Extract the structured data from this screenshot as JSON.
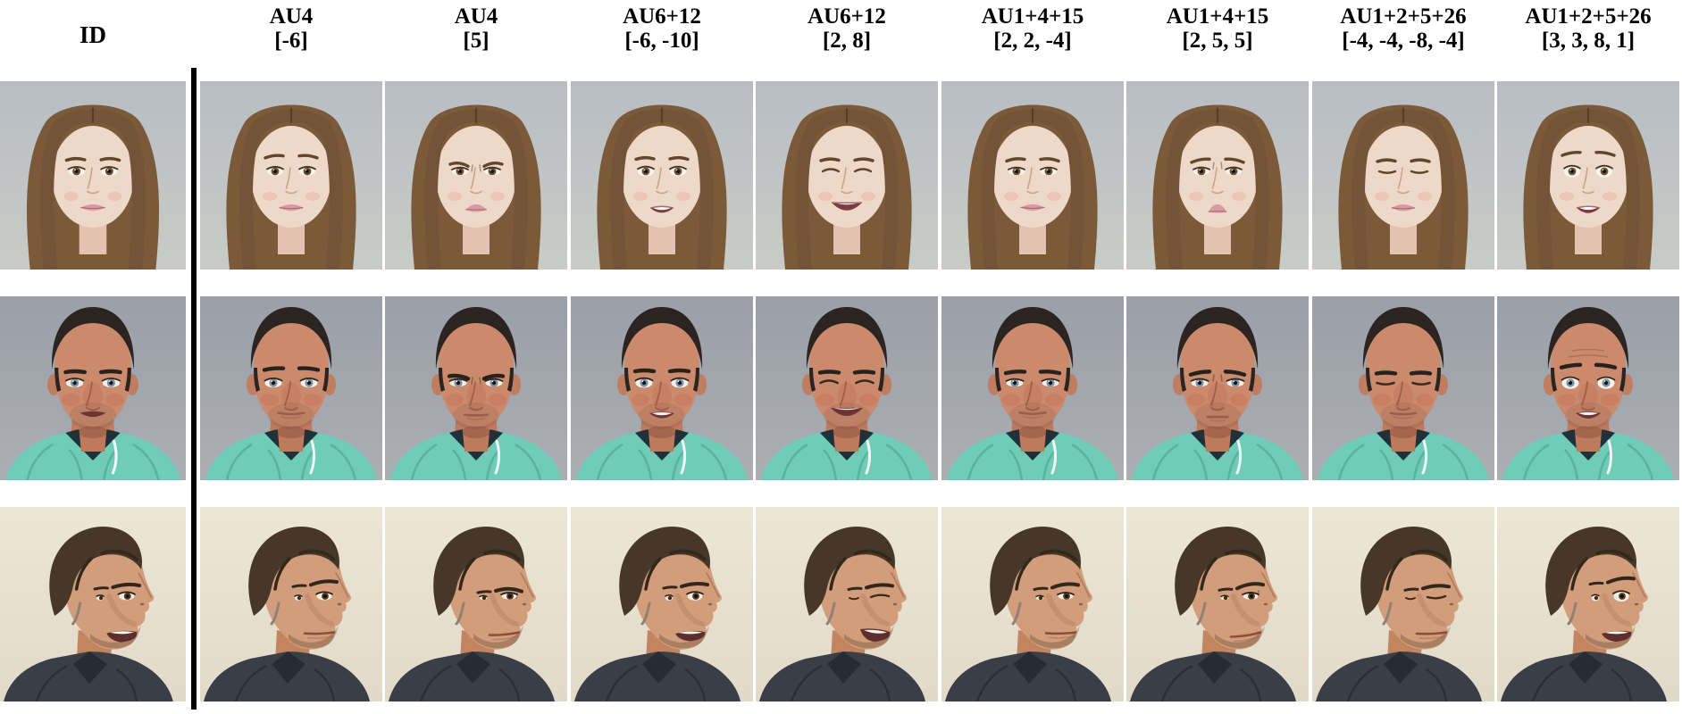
{
  "header": {
    "id_label": "ID",
    "columns": [
      {
        "au": "AU4",
        "intensity": "[-6]"
      },
      {
        "au": "AU4",
        "intensity": "[5]"
      },
      {
        "au": "AU6+12",
        "intensity": "[-6, -10]"
      },
      {
        "au": "AU6+12",
        "intensity": "[2, 8]"
      },
      {
        "au": "AU1+4+15",
        "intensity": "[2, 2, -4]"
      },
      {
        "au": "AU1+4+15",
        "intensity": "[2, 5, 5]"
      },
      {
        "au": "AU1+2+5+26",
        "intensity": "[-4, -4, -8, -4]"
      },
      {
        "au": "AU1+2+5+26",
        "intensity": "[3, 3, 8, 1]"
      }
    ]
  },
  "rows": [
    {
      "subject": "woman-long-brown-hair",
      "view": "frontal",
      "id_expression": {
        "open": 0.0
      }
    },
    {
      "subject": "man-buzz-cut-teal-hoodie",
      "view": "frontal",
      "id_expression": {
        "open": 0.3
      }
    },
    {
      "subject": "man-three-quarter-dark-shirt",
      "view": "three-quarter",
      "id_expression": {
        "open": 0.55,
        "teeth": true
      }
    }
  ],
  "expressions": {
    "neutral": {
      "browY": 0,
      "innerUp": 0,
      "knit": 0,
      "eye": 1,
      "smile": 0.08,
      "open": 0,
      "teeth": false
    },
    "columns": [
      {
        "label": "brows relaxed / slightly raised",
        "params": {
          "browY": -3,
          "innerUp": 0.6,
          "knit": 0,
          "eye": 1.02,
          "smile": 0.06,
          "open": 0.06,
          "teeth": false
        }
      },
      {
        "label": "brows lowered, frown",
        "params": {
          "browY": 4.5,
          "innerUp": 0,
          "knit": 1,
          "eye": 0.78,
          "smile": -0.3,
          "open": 0.12,
          "teeth": false
        }
      },
      {
        "label": "mouth opened, neutral corners",
        "params": {
          "browY": -1,
          "innerUp": 0,
          "knit": 0,
          "eye": 1.1,
          "smile": 0.0,
          "open": 0.45,
          "teeth": true
        }
      },
      {
        "label": "big smile, squinted eyes",
        "params": {
          "browY": 0.5,
          "innerUp": 0,
          "knit": 0,
          "eye": 0.1,
          "smile": 1,
          "open": 0.5,
          "teeth": true
        }
      },
      {
        "label": "mild inner-brow raise",
        "params": {
          "browY": 0.5,
          "innerUp": 0.8,
          "knit": 0.3,
          "eye": 0.8,
          "smile": 0.12,
          "open": 0,
          "teeth": false
        }
      },
      {
        "label": "sad brows, corners down",
        "params": {
          "browY": 1.5,
          "innerUp": 1.6,
          "knit": 0.5,
          "eye": 0.82,
          "smile": -0.7,
          "open": 0.1,
          "teeth": false
        }
      },
      {
        "label": "eyes closed, relaxed",
        "params": {
          "browY": 1.5,
          "innerUp": 0,
          "knit": 0,
          "eye": 0,
          "smile": 0.02,
          "open": 0.08,
          "teeth": false
        }
      },
      {
        "label": "surprise: wide eyes, jaw drop",
        "params": {
          "browY": -6,
          "innerUp": 1,
          "knit": 0,
          "eye": 1.5,
          "smile": 0.02,
          "open": 0.5,
          "teeth": true
        }
      }
    ]
  },
  "colors": {
    "woman": {
      "bg_top": "#b7bdc3",
      "bg_bottom": "#c9cbc5",
      "hair": "#7b5a3a",
      "hair_front": "#745436",
      "skin": "#eed9c9",
      "lips": "#d79aa0",
      "shirt": "#6e2f37",
      "iris": "#6b5132"
    },
    "man_buzzcut": {
      "bg_top": "#9aa0a8",
      "bg_bottom": "#abaeb3",
      "hair": "#2b2420",
      "skin": "#cb8a6c",
      "hoodie": "#6fcdb7",
      "collar": "#20313a",
      "iris": "#7e93a4",
      "lips": "#9a5d4b"
    },
    "man_profile": {
      "bg_top": "#ece6d6",
      "bg_bottom": "#e1dac8",
      "hair": "#473728",
      "skin": "#d29d7a",
      "shirt": "#3a3e47",
      "iris": "#4f3d2a"
    }
  },
  "separator": {
    "color": "#000000"
  }
}
